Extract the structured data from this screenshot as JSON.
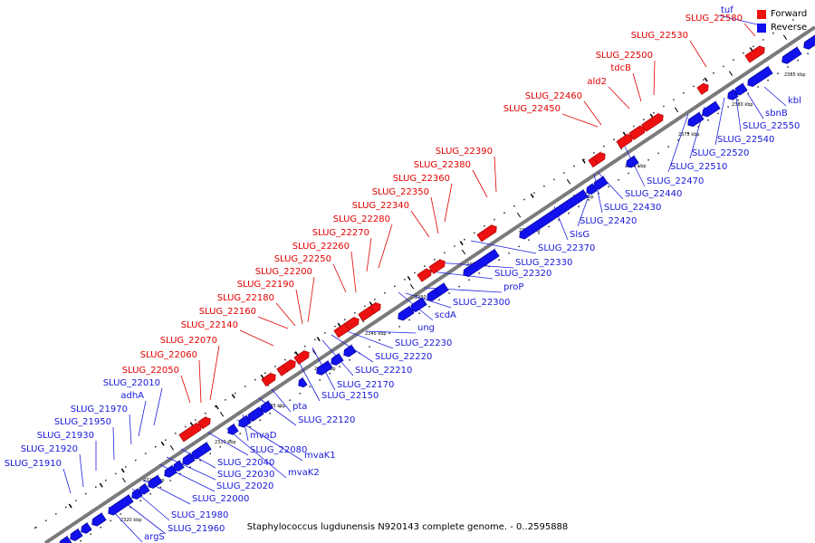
{
  "caption": "Staphylococcus lugdunensis N920143 complete genome. - 0..2595888",
  "legend": [
    {
      "label": "Forward",
      "color": "#ee1111"
    },
    {
      "label": "Reverse",
      "color": "#1111ee"
    }
  ],
  "colors": {
    "forward": "#ee1111",
    "reverse": "#1111ee",
    "forward_label": "#e00000",
    "reverse_label": "#1818d8",
    "backbone": "#777777"
  },
  "ticks": [
    "2320 kbp",
    "2325 kbp",
    "2330 kbp",
    "2335 kbp",
    "2340 kbp",
    "2345 kbp",
    "2350 kbp",
    "2355 kbp",
    "2360 kbp",
    "2365 kbp",
    "2370 kbp",
    "2375 kbp",
    "2380 kbp",
    "2385 kbp"
  ],
  "forward_genes": [
    "SLUG_22050",
    "SLUG_22060",
    "SLUG_22070",
    "SLUG_22140",
    "SLUG_22160",
    "SLUG_22180",
    "SLUG_22190",
    "SLUG_22200",
    "SLUG_22250",
    "SLUG_22260",
    "SLUG_22270",
    "SLUG_22280",
    "SLUG_22340",
    "SLUG_22350",
    "SLUG_22360",
    "SLUG_22380",
    "SLUG_22390",
    "SLUG_22450",
    "SLUG_22460",
    "ald2",
    "tdcB",
    "SLUG_22500",
    "SLUG_22530",
    "SLUG_22580"
  ],
  "reverse_genes_left": [
    "SLUG_21910",
    "SLUG_21920",
    "SLUG_21930",
    "SLUG_21950",
    "SLUG_21970",
    "adhA",
    "SLUG_22010"
  ],
  "reverse_genes_right": [
    "argS",
    "SLUG_21960",
    "SLUG_21980",
    "SLUG_22000",
    "SLUG_22020",
    "SLUG_22030",
    "SLUG_22040",
    "mvaK2",
    "mvaK1",
    "SLUG_22080",
    "mvaD",
    "SLUG_22120",
    "pta",
    "SLUG_22150",
    "SLUG_22170",
    "SLUG_22210",
    "SLUG_22220",
    "SLUG_22230",
    "ung",
    "scdA",
    "SLUG_22300",
    "proP",
    "SLUG_22320",
    "SLUG_22330",
    "SLUG_22370",
    "SlsG",
    "SLUG_22420",
    "SLUG_22430",
    "SLUG_22440",
    "SLUG_22470",
    "SLUG_22510",
    "SLUG_22520",
    "SLUG_22540",
    "SLUG_22550",
    "sbnB",
    "kbl",
    "tuf"
  ]
}
